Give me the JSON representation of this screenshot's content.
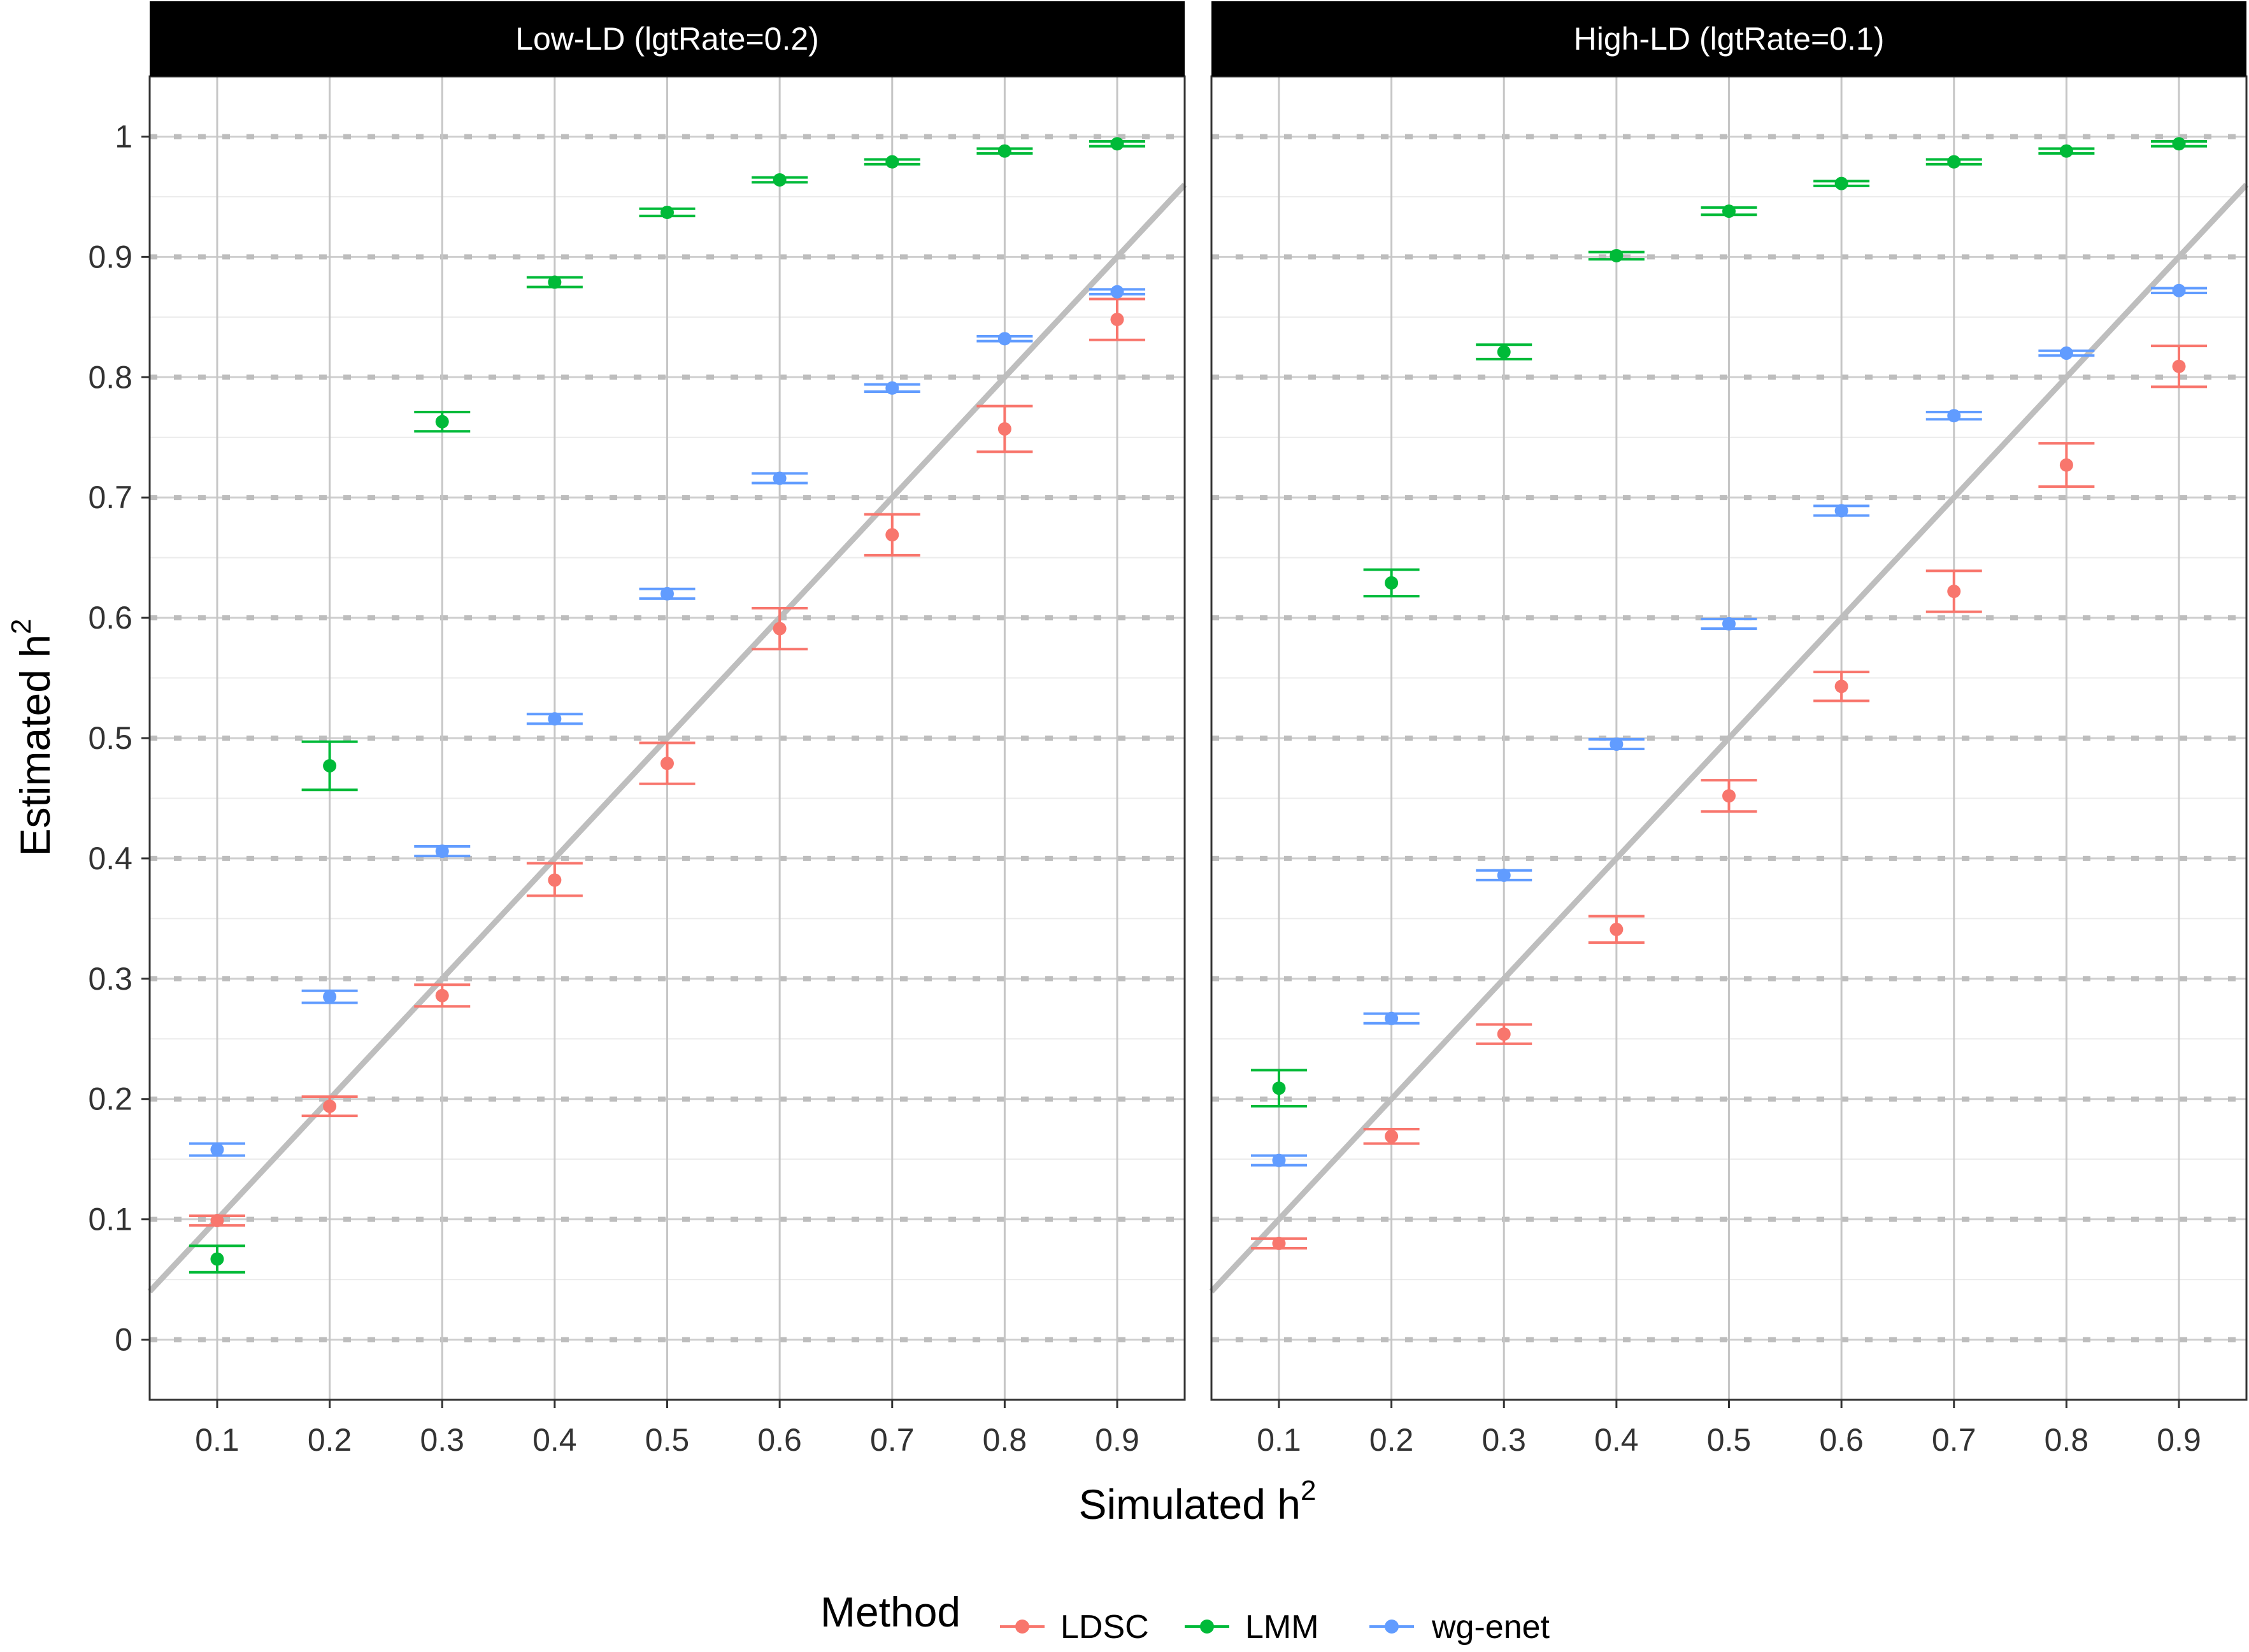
{
  "chart_data": {
    "type": "scatter",
    "x_label": "Simulated h",
    "x_label_sup": "2",
    "y_label": "Estimated h",
    "y_label_sup": "2",
    "x_ticks": [
      "0.1",
      "0.2",
      "0.3",
      "0.4",
      "0.5",
      "0.6",
      "0.7",
      "0.8",
      "0.9"
    ],
    "y_ticks": [
      "0",
      "0.1",
      "0.2",
      "0.3",
      "0.4",
      "0.5",
      "0.6",
      "0.7",
      "0.8",
      "0.9",
      "1"
    ],
    "x_range": [
      0.04,
      0.96
    ],
    "y_range": [
      -0.05,
      1.05
    ],
    "grid": true,
    "reference_line": "y = x",
    "legend": {
      "title": "Method",
      "position": "bottom",
      "items": [
        {
          "name": "LDSC",
          "color": "#F8766D"
        },
        {
          "name": "LMM",
          "color": "#00BA38"
        },
        {
          "name": "wg-enet",
          "color": "#619CFF"
        }
      ]
    },
    "panels": [
      {
        "title": "Low-LD (lgtRate=0.2)",
        "series": [
          {
            "name": "LDSC",
            "color": "#F8766D",
            "x": [
              0.1,
              0.2,
              0.3,
              0.4,
              0.5,
              0.6,
              0.7,
              0.8,
              0.9
            ],
            "y": [
              0.099,
              0.194,
              0.286,
              0.382,
              0.479,
              0.591,
              0.669,
              0.757,
              0.848
            ],
            "lo": [
              0.095,
              0.186,
              0.277,
              0.369,
              0.462,
              0.574,
              0.652,
              0.738,
              0.831
            ],
            "hi": [
              0.103,
              0.202,
              0.295,
              0.396,
              0.496,
              0.608,
              0.686,
              0.776,
              0.865
            ]
          },
          {
            "name": "LMM",
            "color": "#00BA38",
            "x": [
              0.1,
              0.2,
              0.3,
              0.4,
              0.5,
              0.6,
              0.7,
              0.8,
              0.9
            ],
            "y": [
              0.067,
              0.477,
              0.763,
              0.879,
              0.937,
              0.964,
              0.979,
              0.988,
              0.994
            ],
            "lo": [
              0.056,
              0.457,
              0.755,
              0.875,
              0.934,
              0.962,
              0.977,
              0.986,
              0.992
            ],
            "hi": [
              0.078,
              0.497,
              0.771,
              0.883,
              0.94,
              0.966,
              0.981,
              0.99,
              0.996
            ]
          },
          {
            "name": "wg-enet",
            "color": "#619CFF",
            "x": [
              0.1,
              0.2,
              0.3,
              0.4,
              0.5,
              0.6,
              0.7,
              0.8,
              0.9
            ],
            "y": [
              0.158,
              0.285,
              0.406,
              0.516,
              0.62,
              0.716,
              0.791,
              0.832,
              0.871
            ],
            "lo": [
              0.153,
              0.28,
              0.402,
              0.512,
              0.616,
              0.712,
              0.788,
              0.83,
              0.869
            ],
            "hi": [
              0.163,
              0.29,
              0.41,
              0.52,
              0.624,
              0.72,
              0.794,
              0.834,
              0.873
            ]
          }
        ]
      },
      {
        "title": "High-LD (lgtRate=0.1)",
        "series": [
          {
            "name": "LDSC",
            "color": "#F8766D",
            "x": [
              0.1,
              0.2,
              0.3,
              0.4,
              0.5,
              0.6,
              0.7,
              0.8,
              0.9
            ],
            "y": [
              0.08,
              0.169,
              0.254,
              0.341,
              0.452,
              0.543,
              0.622,
              0.727,
              0.809
            ],
            "lo": [
              0.076,
              0.163,
              0.246,
              0.33,
              0.439,
              0.531,
              0.605,
              0.709,
              0.792
            ],
            "hi": [
              0.084,
              0.175,
              0.262,
              0.352,
              0.465,
              0.555,
              0.639,
              0.745,
              0.826
            ]
          },
          {
            "name": "LMM",
            "color": "#00BA38",
            "x": [
              0.1,
              0.2,
              0.3,
              0.4,
              0.5,
              0.6,
              0.7,
              0.8,
              0.9
            ],
            "y": [
              0.209,
              0.629,
              0.821,
              0.901,
              0.938,
              0.961,
              0.979,
              0.988,
              0.994
            ],
            "lo": [
              0.194,
              0.618,
              0.815,
              0.898,
              0.935,
              0.959,
              0.977,
              0.986,
              0.992
            ],
            "hi": [
              0.224,
              0.64,
              0.827,
              0.904,
              0.941,
              0.963,
              0.981,
              0.99,
              0.996
            ]
          },
          {
            "name": "wg-enet",
            "color": "#619CFF",
            "x": [
              0.1,
              0.2,
              0.3,
              0.4,
              0.5,
              0.6,
              0.7,
              0.8,
              0.9
            ],
            "y": [
              0.149,
              0.267,
              0.386,
              0.495,
              0.595,
              0.689,
              0.768,
              0.82,
              0.872
            ],
            "lo": [
              0.145,
              0.263,
              0.382,
              0.491,
              0.591,
              0.685,
              0.765,
              0.818,
              0.87
            ],
            "hi": [
              0.153,
              0.271,
              0.39,
              0.499,
              0.599,
              0.693,
              0.771,
              0.822,
              0.874
            ]
          }
        ]
      }
    ]
  }
}
